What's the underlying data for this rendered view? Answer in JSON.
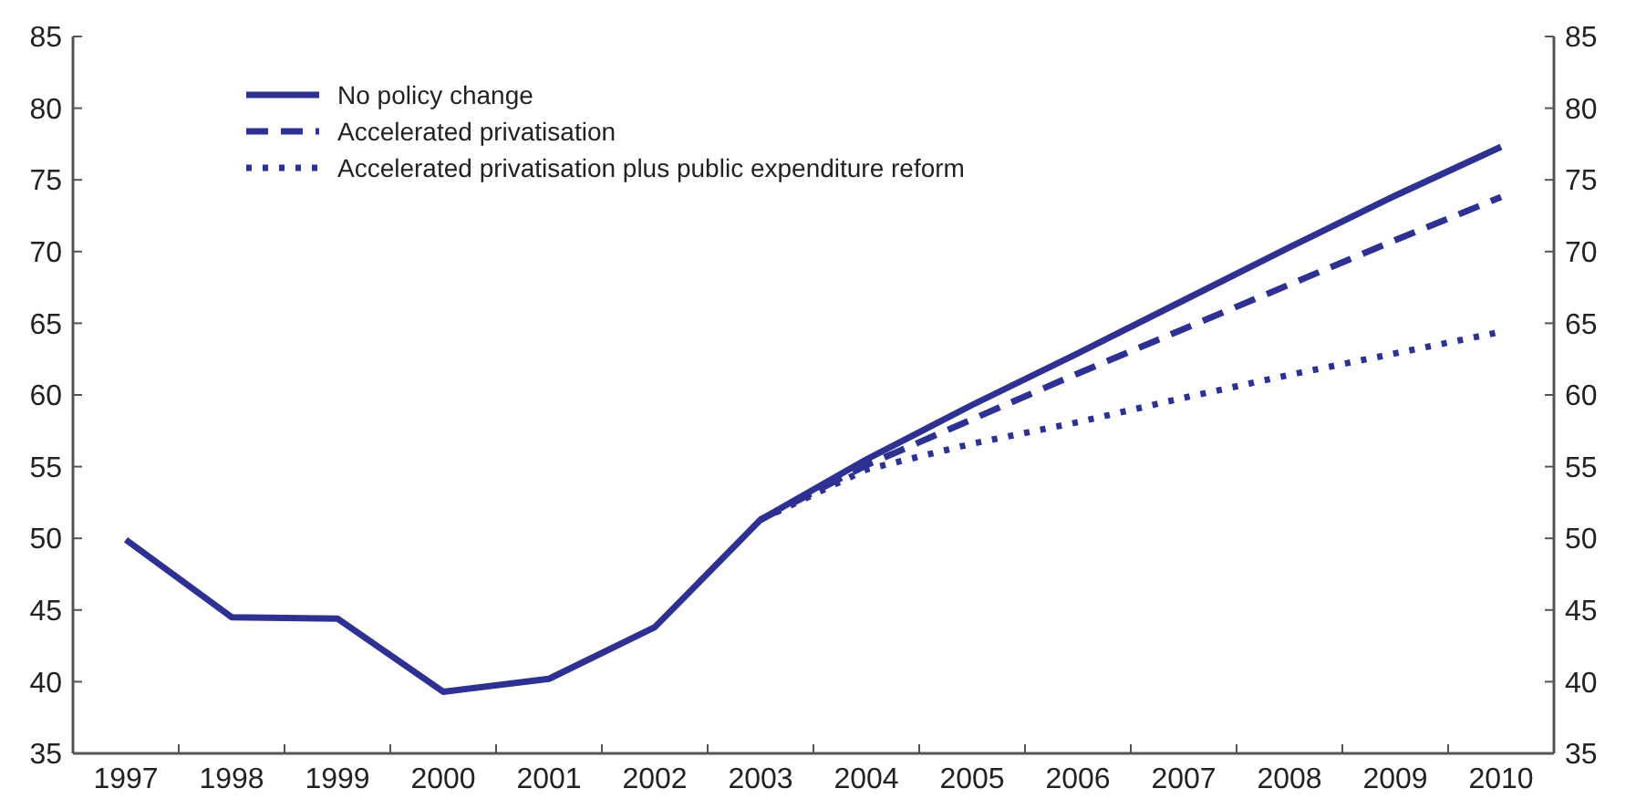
{
  "chart_data": {
    "type": "line",
    "categories": [
      "1997",
      "1998",
      "1999",
      "2000",
      "2001",
      "2002",
      "2003",
      "2004",
      "2005",
      "2006",
      "2007",
      "2008",
      "2009",
      "2010"
    ],
    "series": [
      {
        "name": "No policy change",
        "color": "#2e3192",
        "line_style": "solid",
        "values": [
          49.9,
          44.5,
          44.4,
          39.3,
          40.2,
          43.8,
          51.3,
          55.5,
          59.3,
          62.9,
          66.6,
          70.3,
          73.9,
          77.3
        ]
      },
      {
        "name": "Accelerated privatisation",
        "color": "#2e3192",
        "line_style": "dashed",
        "values": [
          null,
          null,
          null,
          null,
          null,
          null,
          51.3,
          55.1,
          58.3,
          61.5,
          64.6,
          67.7,
          70.8,
          73.8
        ]
      },
      {
        "name": "Accelerated privatisation plus public expenditure reform",
        "color": "#2e3192",
        "line_style": "dotted",
        "values": [
          null,
          null,
          null,
          null,
          null,
          null,
          51.3,
          54.8,
          56.6,
          58.1,
          59.8,
          61.4,
          62.9,
          64.4
        ]
      }
    ],
    "ylim": [
      35,
      85
    ],
    "yticks": [
      35,
      40,
      45,
      50,
      55,
      60,
      65,
      70,
      75,
      80,
      85
    ],
    "y2lim": [
      35,
      85
    ],
    "y2ticks": [
      35,
      40,
      45,
      50,
      55,
      60,
      65,
      70,
      75,
      80,
      85
    ],
    "grid": false,
    "legend": "top left",
    "marker": "none"
  }
}
